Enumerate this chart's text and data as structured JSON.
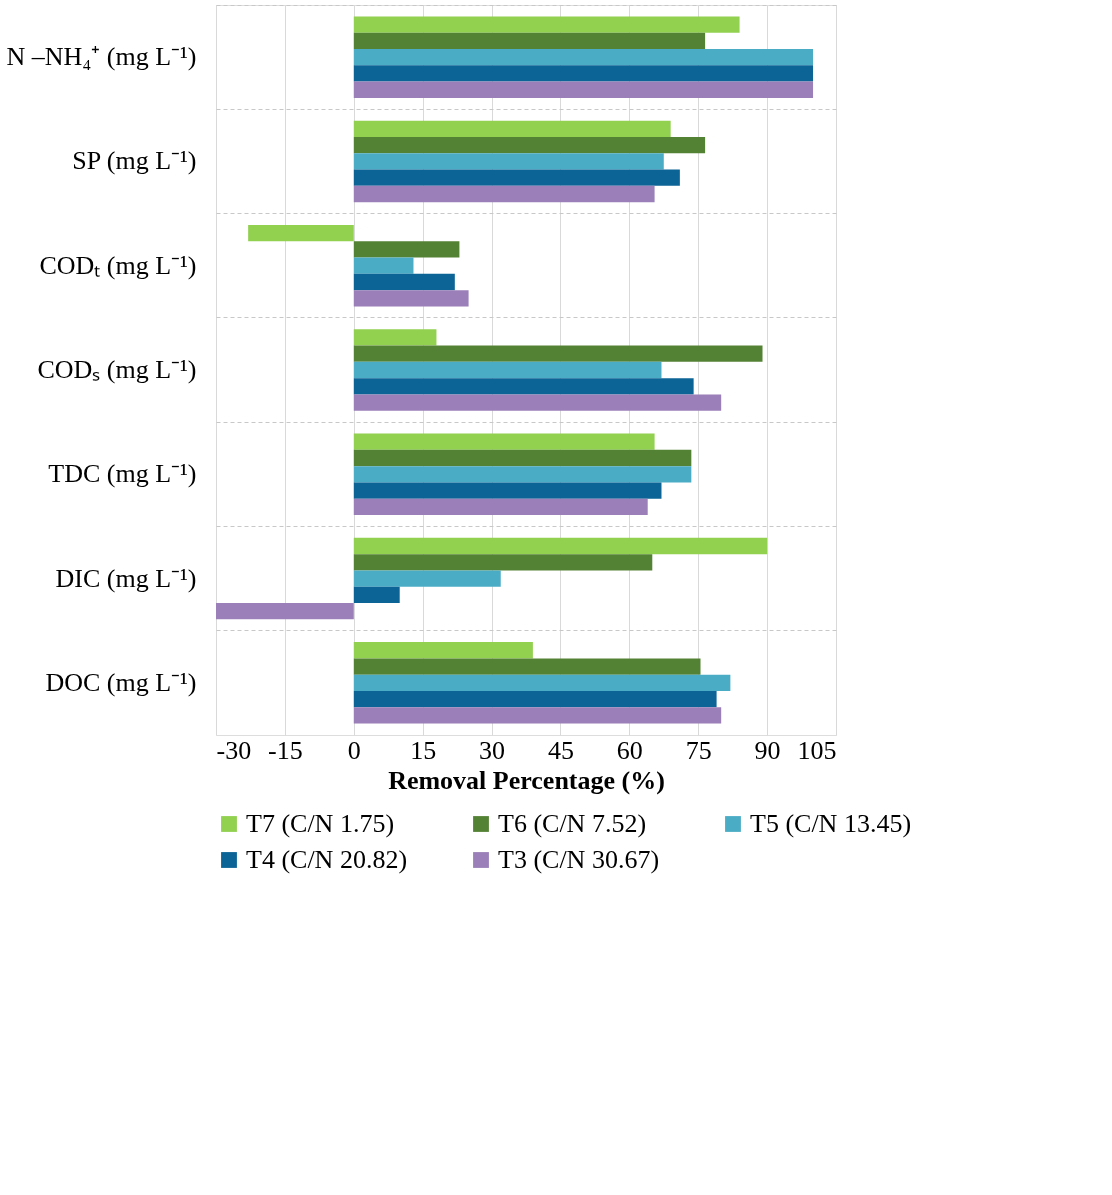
{
  "chart_data": {
    "type": "bar",
    "orientation": "horizontal",
    "xlabel": "Removal Percentage (%)",
    "categories": [
      "N –NH₄⁺ (mg L⁻¹)",
      "SP (mg L⁻¹)",
      "CODₜ (mg L⁻¹)",
      "CODₛ (mg L⁻¹)",
      "TDC (mg L⁻¹)",
      "DIC (mg L⁻¹)",
      "DOC (mg L⁻¹)"
    ],
    "series": [
      {
        "name": "T7 (C/N 1.75)",
        "color": "#92d050",
        "values": [
          84,
          69,
          -23,
          18,
          65.5,
          90,
          39
        ]
      },
      {
        "name": "T6 (C/N 7.52)",
        "color": "#548235",
        "values": [
          76.5,
          76.5,
          23,
          89,
          73.5,
          65,
          75.5
        ]
      },
      {
        "name": "T5 (C/N 13.45)",
        "color": "#4bacc6",
        "values": [
          100,
          67.5,
          13,
          67,
          73.5,
          32,
          82
        ]
      },
      {
        "name": "T4 (C/N 20.82)",
        "color": "#0b6396",
        "values": [
          100,
          71,
          22,
          74,
          67,
          10,
          79
        ]
      },
      {
        "name": "T3 (C/N 30.67)",
        "color": "#9a7fb8",
        "values": [
          100,
          65.5,
          25,
          80,
          64,
          -30,
          80
        ]
      }
    ],
    "xlim": [
      -30,
      105
    ],
    "xticks": [
      -30,
      -15,
      0,
      15,
      30,
      45,
      60,
      75,
      90,
      105
    ],
    "grid": true,
    "legend": "bottom"
  }
}
